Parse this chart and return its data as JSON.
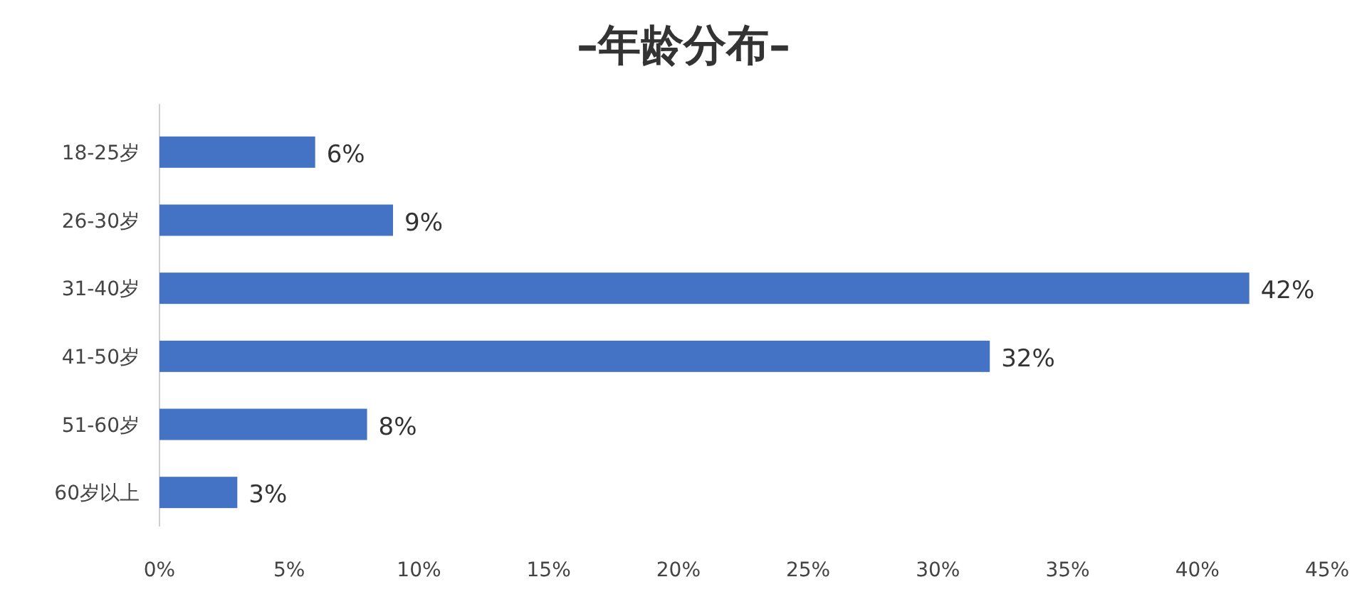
{
  "chart_data": {
    "type": "bar",
    "orientation": "horizontal",
    "title": "–年龄分布–",
    "categories": [
      "18-25岁",
      "26-30岁",
      "31-40岁",
      "41-50岁",
      "51-60岁",
      "60岁以上"
    ],
    "values": [
      6,
      9,
      42,
      32,
      8,
      3
    ],
    "value_labels": [
      "6%",
      "9%",
      "42%",
      "32%",
      "8%",
      "3%"
    ],
    "color": "#4472c4",
    "xlim": [
      0,
      45
    ],
    "xticks": [
      {
        "value": 0,
        "label": "0%"
      },
      {
        "value": 5,
        "label": "5%"
      },
      {
        "value": 10,
        "label": "10%"
      },
      {
        "value": 15,
        "label": "15%"
      },
      {
        "value": 20,
        "label": "20%"
      },
      {
        "value": 25,
        "label": "25%"
      },
      {
        "value": 30,
        "label": "30%"
      },
      {
        "value": 35,
        "label": "35%"
      },
      {
        "value": 40,
        "label": "40%"
      },
      {
        "value": 45,
        "label": "45%"
      }
    ]
  }
}
